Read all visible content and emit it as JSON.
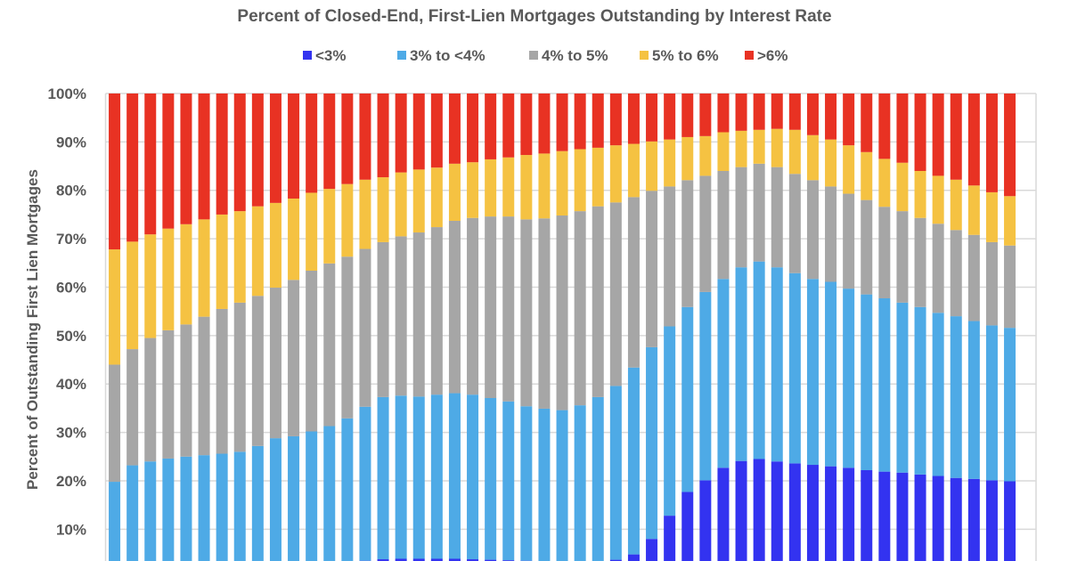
{
  "chart_data": {
    "type": "bar",
    "stacked": true,
    "title": "Percent of Closed-End, First-Lien Mortgages Outstanding by Interest Rate",
    "xlabel": "",
    "ylabel": "Percent of Outstanding First Lien Mortgages",
    "ylim": [
      0,
      100
    ],
    "yticks": [
      "10%",
      "20%",
      "30%",
      "40%",
      "50%",
      "60%",
      "70%",
      "80%",
      "90%",
      "100%"
    ],
    "grid": true,
    "legend_position": "top",
    "series": [
      {
        "name": "<3%",
        "color": "#3333f0",
        "values": [
          0,
          0,
          0,
          0,
          0,
          0,
          0,
          0,
          0,
          0,
          0,
          0,
          0,
          0,
          3.5,
          3.8,
          3.9,
          3.9,
          3.9,
          3.9,
          3.8,
          3.7,
          3.6,
          3.5,
          3.3,
          3.2,
          3.2,
          3.3,
          3.7,
          4.8,
          8.0,
          12.8,
          17.7,
          20.1,
          22.7,
          24.1,
          24.5,
          24.0,
          23.6,
          23.3,
          23.0,
          22.7,
          22.2,
          21.9,
          21.7,
          21.3,
          21.0,
          20.6,
          20.4,
          20.1,
          19.9
        ]
      },
      {
        "name": "3% to <4%",
        "color": "#4eaae6",
        "values": [
          19.8,
          23.2,
          24.0,
          24.6,
          25.0,
          25.3,
          25.6,
          26.0,
          27.2,
          28.8,
          29.2,
          30.2,
          31.3,
          32.9,
          31.8,
          33.5,
          33.7,
          33.5,
          33.9,
          34.2,
          34.0,
          33.4,
          32.8,
          31.9,
          31.6,
          31.4,
          32.4,
          34.0,
          35.9,
          38.6,
          39.6,
          39.1,
          38.2,
          38.9,
          39.0,
          40.0,
          40.8,
          40.1,
          39.3,
          38.4,
          38.1,
          37.0,
          36.3,
          35.8,
          35.1,
          34.6,
          33.7,
          33.4,
          32.6,
          32.0,
          31.7
        ]
      },
      {
        "name": "4% to 5%",
        "color": "#a6a6a6",
        "values": [
          24.2,
          24.0,
          25.5,
          26.5,
          27.3,
          28.6,
          29.9,
          30.8,
          31.0,
          31.1,
          32.3,
          33.2,
          33.6,
          33.4,
          32.6,
          32.0,
          32.9,
          33.9,
          34.6,
          35.6,
          36.5,
          37.5,
          38.2,
          38.6,
          39.3,
          40.2,
          40.1,
          39.4,
          37.9,
          35.2,
          32.3,
          28.9,
          26.2,
          24.0,
          22.3,
          20.7,
          20.2,
          20.7,
          20.5,
          20.4,
          19.7,
          19.6,
          19.5,
          18.9,
          18.9,
          18.4,
          18.4,
          17.8,
          17.8,
          17.2,
          17.0
        ]
      },
      {
        "name": "5% to 6%",
        "color": "#f5c242",
        "values": [
          23.8,
          22.2,
          21.4,
          21.0,
          20.7,
          20.1,
          19.5,
          18.9,
          18.5,
          17.5,
          16.8,
          16.1,
          15.4,
          15.0,
          14.3,
          13.4,
          13.2,
          13.0,
          12.3,
          11.8,
          11.5,
          11.8,
          12.2,
          13.3,
          13.4,
          13.3,
          12.8,
          12.1,
          11.8,
          11.0,
          10.2,
          9.7,
          8.9,
          8.2,
          8.0,
          7.5,
          7.0,
          7.9,
          9.1,
          9.3,
          9.7,
          10.0,
          9.9,
          9.9,
          10.0,
          9.7,
          9.9,
          10.4,
          10.2,
          10.3,
          10.2
        ]
      },
      {
        "name": ">6%",
        "color": "#e83223",
        "values": [
          32.2,
          30.6,
          29.1,
          27.9,
          27.0,
          26.0,
          25.0,
          24.3,
          23.3,
          22.6,
          21.7,
          20.5,
          19.7,
          18.7,
          17.8,
          17.3,
          16.3,
          15.7,
          15.3,
          14.5,
          14.2,
          13.6,
          13.2,
          12.7,
          12.4,
          11.9,
          11.5,
          11.2,
          10.7,
          10.4,
          9.9,
          9.5,
          9.0,
          8.8,
          8.0,
          7.7,
          7.5,
          7.3,
          7.5,
          8.6,
          9.5,
          10.7,
          12.1,
          13.5,
          14.3,
          16.0,
          17.0,
          17.8,
          19.0,
          20.4,
          21.2
        ]
      }
    ]
  }
}
